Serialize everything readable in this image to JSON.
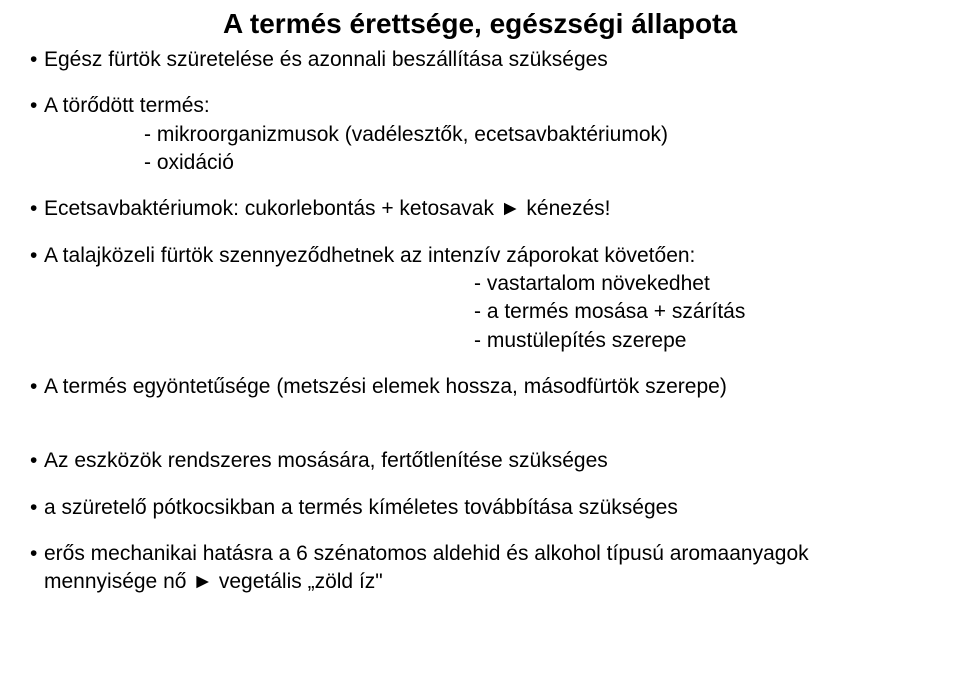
{
  "title": "A termés érettsége, egészségi állapota",
  "block1": {
    "b1": "Egész fürtök szüretelése és azonnali beszállítása szükséges",
    "b2": "A törődött termés:",
    "b2_sub1": "- mikroorganizmusok (vadélesztők, ecetsavbaktériumok)",
    "b2_sub2": "- oxidáció",
    "b3": "Ecetsavbaktériumok: cukorlebontás + ketosavak ► kénezés!",
    "b4": "A talajközeli fürtök szennyeződhetnek az intenzív záporokat követően:",
    "b4_sub1": "- vastartalom növekedhet",
    "b4_sub2": "- a termés mosása + szárítás",
    "b4_sub3": "- mustülepítés szerepe",
    "b5": "A termés egyöntetűsége (metszési elemek hossza, másodfürtök szerepe)"
  },
  "block2": {
    "b6": "Az eszközök rendszeres mosására, fertőtlenítése szükséges",
    "b7": "a szüretelő pótkocsikban a termés kíméletes továbbítása szükséges",
    "b8_line1": "erős mechanikai hatásra a 6 szénatomos aldehid és alkohol típusú aromaanyagok",
    "b8_line2": "mennyisége nő ► vegetális „zöld íz\""
  }
}
